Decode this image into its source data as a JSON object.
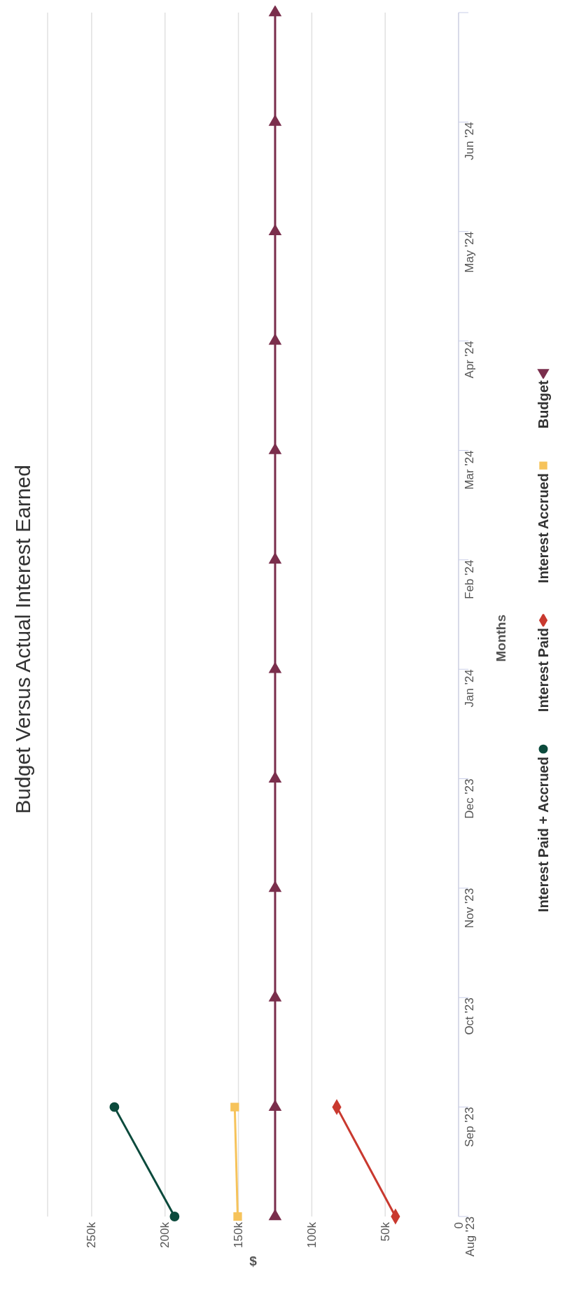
{
  "chart_data": {
    "type": "line",
    "orientation": "horizontal",
    "title": "Budget Versus Actual Interest Earned",
    "xlabel": "$",
    "ylabel": "Months",
    "categories": [
      null,
      "Jun '24",
      "May '24",
      "Apr '24",
      "Mar '24",
      "Feb '24",
      "Jan '24",
      "Dec '23",
      "Nov '23",
      "Oct '23",
      "Sep '23",
      "Aug '23"
    ],
    "series": [
      {
        "name": "Interest Paid + Accrued",
        "color": "#0b4a3c",
        "marker": "circle",
        "values": [
          null,
          null,
          null,
          null,
          null,
          null,
          null,
          null,
          null,
          null,
          234500,
          193500
        ]
      },
      {
        "name": "Interest Paid",
        "color": "#c9392f",
        "marker": "diamond",
        "values": [
          null,
          null,
          null,
          null,
          null,
          null,
          null,
          null,
          null,
          null,
          83000,
          43000
        ]
      },
      {
        "name": "Interest Accrued",
        "color": "#f6c35b",
        "marker": "square",
        "values": [
          null,
          null,
          null,
          null,
          null,
          null,
          null,
          null,
          null,
          null,
          152500,
          150500
        ]
      },
      {
        "name": "Budget",
        "color": "#7a2e4c",
        "marker": "triangle",
        "values": [
          125000,
          125000,
          125000,
          125000,
          125000,
          125000,
          125000,
          125000,
          125000,
          125000,
          125000,
          125000
        ]
      }
    ],
    "xlim": [
      280000,
      0
    ],
    "xticks": [
      0,
      {
        "value": 50000,
        "label": "50k"
      },
      {
        "value": 100000,
        "label": "100k"
      },
      {
        "value": 150000,
        "label": "150k"
      },
      {
        "value": 200000,
        "label": "200k"
      },
      {
        "value": 250000,
        "label": "250k"
      }
    ],
    "grid": "x",
    "legend": "right",
    "line_style": "solid"
  }
}
